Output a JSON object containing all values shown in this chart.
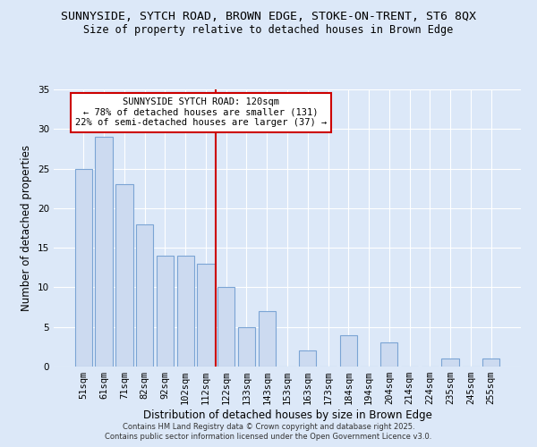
{
  "title": "SUNNYSIDE, SYTCH ROAD, BROWN EDGE, STOKE-ON-TRENT, ST6 8QX",
  "subtitle": "Size of property relative to detached houses in Brown Edge",
  "xlabel": "Distribution of detached houses by size in Brown Edge",
  "ylabel": "Number of detached properties",
  "categories": [
    "51sqm",
    "61sqm",
    "71sqm",
    "82sqm",
    "92sqm",
    "102sqm",
    "112sqm",
    "122sqm",
    "133sqm",
    "143sqm",
    "153sqm",
    "163sqm",
    "173sqm",
    "184sqm",
    "194sqm",
    "204sqm",
    "214sqm",
    "224sqm",
    "235sqm",
    "245sqm",
    "255sqm"
  ],
  "values": [
    25,
    29,
    23,
    18,
    14,
    14,
    13,
    10,
    5,
    7,
    0,
    2,
    0,
    4,
    0,
    3,
    0,
    0,
    1,
    0,
    1
  ],
  "bar_color": "#ccdaf0",
  "bar_edge_color": "#7ba4d4",
  "vline_position": 6.5,
  "vline_color": "#cc0000",
  "annotation_title": "SUNNYSIDE SYTCH ROAD: 120sqm",
  "annotation_line1": "← 78% of detached houses are smaller (131)",
  "annotation_line2": "22% of semi-detached houses are larger (37) →",
  "annotation_box_color": "#ffffff",
  "annotation_box_edge": "#cc0000",
  "ylim": [
    0,
    35
  ],
  "yticks": [
    0,
    5,
    10,
    15,
    20,
    25,
    30,
    35
  ],
  "background_color": "#dce8f8",
  "grid_color": "#ffffff",
  "footer1": "Contains HM Land Registry data © Crown copyright and database right 2025.",
  "footer2": "Contains public sector information licensed under the Open Government Licence v3.0.",
  "title_fontsize": 9.5,
  "subtitle_fontsize": 8.5,
  "xlabel_fontsize": 8.5,
  "ylabel_fontsize": 8.5,
  "tick_fontsize": 7.5,
  "annot_fontsize": 7.5,
  "footer_fontsize": 6.0
}
